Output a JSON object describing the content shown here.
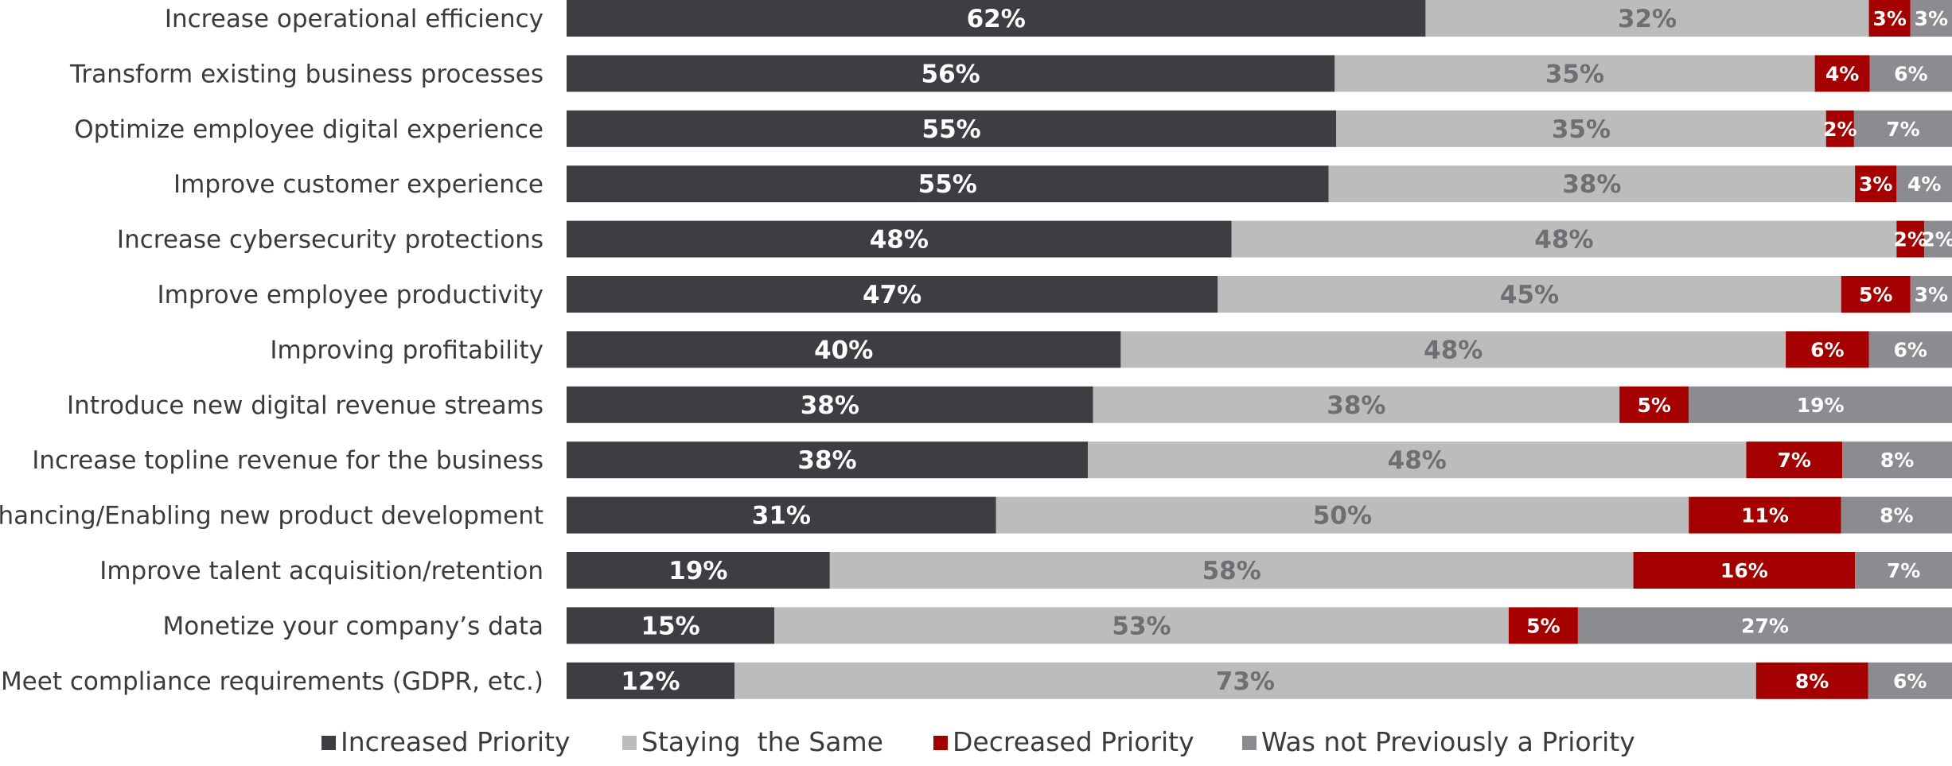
{
  "chart_data": {
    "type": "bar",
    "orientation": "horizontal",
    "stacked": true,
    "percent_stacked": true,
    "categories": [
      "Increase operational efficiency",
      "Transform existing business processes",
      "Optimize employee digital experience",
      "Improve customer experience",
      "Increase cybersecurity protections",
      "Improve employee productivity",
      "Improving profitability",
      "Introduce new digital revenue streams",
      "Increase topline revenue for the business",
      "Enhancing/Enabling new product development",
      "Improve talent acquisition/retention",
      "Monetize your company’s data",
      "Meet compliance requirements (GDPR, etc.)"
    ],
    "series": [
      {
        "name": "Increased Priority",
        "color": "#3d3d42",
        "label_color": "#ffffff",
        "values": [
          62,
          56,
          55,
          55,
          48,
          47,
          40,
          38,
          38,
          31,
          19,
          15,
          12
        ],
        "labels": [
          "62%",
          "56%",
          "55%",
          "55%",
          "48%",
          "47%",
          "40%",
          "38%",
          "38%",
          "31%",
          "19%",
          "15%",
          "12%"
        ]
      },
      {
        "name": "Staying  the Same",
        "color": "#bcbcbc",
        "label_color": "#6f6f73",
        "values": [
          32,
          35,
          35,
          38,
          48,
          45,
          48,
          38,
          48,
          50,
          58,
          53,
          73
        ],
        "labels": [
          "32%",
          "35%",
          "35%",
          "38%",
          "48%",
          "45%",
          "48%",
          "38%",
          "48%",
          "50%",
          "58%",
          "53%",
          "73%"
        ]
      },
      {
        "name": "Decreased Priority",
        "color": "#a50000",
        "label_color": "#ffffff",
        "values": [
          3,
          4,
          2,
          3,
          2,
          5,
          6,
          5,
          7,
          11,
          16,
          5,
          8
        ],
        "labels": [
          "3%",
          "4%",
          "2%",
          "3%",
          "2%",
          "5%",
          "6%",
          "5%",
          "7%",
          "11%",
          "16%",
          "5%",
          "8%"
        ]
      },
      {
        "name": "Was not Previously a Priority",
        "color": "#8c8c90",
        "label_color": "#ffffff",
        "values": [
          3,
          6,
          7,
          4,
          2,
          3,
          6,
          19,
          8,
          8,
          7,
          27,
          6
        ],
        "labels": [
          "3%",
          "6%",
          "7%",
          "4%",
          "2%",
          "3%",
          "6%",
          "19%",
          "8%",
          "8%",
          "7%",
          "27%",
          "6%"
        ]
      }
    ],
    "legend": "bottom",
    "grid": false
  }
}
